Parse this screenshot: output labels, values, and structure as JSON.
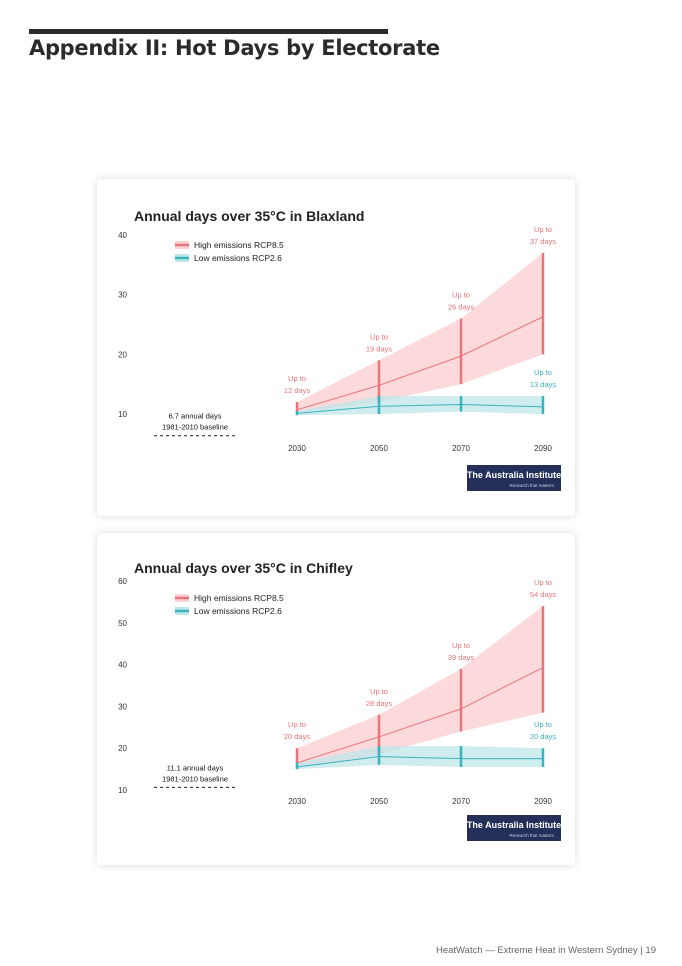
{
  "page": {
    "heading": "Appendix II: Hot Days by Electorate",
    "footer": "HeatWatch — Extreme Heat in Western Sydney | 19"
  },
  "colors": {
    "high": "#e8737a",
    "high_fill": "#fbd3d5",
    "low": "#3ab3bd",
    "low_fill": "#bfe6e8",
    "logo_bg": "#25305a"
  },
  "chart_data": [
    {
      "type": "area",
      "title": "Annual days over 35°C in Blaxland",
      "x": [
        2030,
        2050,
        2070,
        2090
      ],
      "x_tick_labels": [
        "2030",
        "2050",
        "2070",
        "2090"
      ],
      "y_ticks": [
        10,
        20,
        30,
        40
      ],
      "ylim": [
        10,
        40
      ],
      "baseline": {
        "value": 6.7,
        "line1": "6.7 annual days",
        "line2": "1981-2010 baseline"
      },
      "legend_position": "top-left",
      "grid": false,
      "series": [
        {
          "name": "High emissions RCP8.5",
          "color": "#e8737a",
          "mean": [
            10.7,
            14.8,
            19.7,
            26.3
          ],
          "lower": [
            10.2,
            12.0,
            15.0,
            20.0
          ],
          "upper": [
            12.0,
            19.0,
            26.0,
            37.0
          ]
        },
        {
          "name": "Low emissions RCP2.6",
          "color": "#3ab3bd",
          "mean": [
            10.1,
            11.3,
            11.6,
            11.2
          ],
          "lower": [
            9.8,
            10.0,
            10.4,
            10.0
          ],
          "upper": [
            10.5,
            13.0,
            13.0,
            13.0
          ]
        }
      ],
      "annotations": [
        {
          "series": 0,
          "x": 2030,
          "line1": "Up to",
          "line2": "12 days"
        },
        {
          "series": 0,
          "x": 2050,
          "line1": "Up to",
          "line2": "19 days"
        },
        {
          "series": 0,
          "x": 2070,
          "line1": "Up to",
          "line2": "26 days"
        },
        {
          "series": 0,
          "x": 2090,
          "line1": "Up to",
          "line2": "37 days"
        },
        {
          "series": 1,
          "x": 2090,
          "line1": "Up to",
          "line2": "13 days"
        }
      ],
      "logo": {
        "line1": "The Australia Institute",
        "line2": "Research that matters."
      }
    },
    {
      "type": "area",
      "title": "Annual days over 35°C in Chifley",
      "x": [
        2030,
        2050,
        2070,
        2090
      ],
      "x_tick_labels": [
        "2030",
        "2050",
        "2070",
        "2090"
      ],
      "y_ticks": [
        10,
        20,
        30,
        40,
        50,
        60
      ],
      "ylim": [
        10,
        60
      ],
      "baseline": {
        "value": 11.1,
        "line1": "11.1 annual days",
        "line2": "1981-2010 baseline"
      },
      "legend_position": "top-left",
      "grid": false,
      "series": [
        {
          "name": "High emissions RCP8.5",
          "color": "#e8737a",
          "mean": [
            16.5,
            22.7,
            29.4,
            39.3
          ],
          "lower": [
            15.5,
            18.5,
            24.0,
            28.5
          ],
          "upper": [
            20.0,
            28.0,
            39.0,
            54.0
          ]
        },
        {
          "name": "Low emissions RCP2.6",
          "color": "#3ab3bd",
          "mean": [
            15.5,
            18.0,
            17.5,
            17.5
          ],
          "lower": [
            15.0,
            16.0,
            15.5,
            15.5
          ],
          "upper": [
            16.5,
            20.5,
            20.5,
            20.0
          ]
        }
      ],
      "annotations": [
        {
          "series": 0,
          "x": 2030,
          "line1": "Up to",
          "line2": "20 days"
        },
        {
          "series": 0,
          "x": 2050,
          "line1": "Up to",
          "line2": "28 days"
        },
        {
          "series": 0,
          "x": 2070,
          "line1": "Up to",
          "line2": "39 days"
        },
        {
          "series": 0,
          "x": 2090,
          "line1": "Up to",
          "line2": "54 days"
        },
        {
          "series": 1,
          "x": 2090,
          "line1": "Up to",
          "line2": "20 days"
        }
      ],
      "logo": {
        "line1": "The Australia Institute",
        "line2": "Research that matters."
      }
    }
  ]
}
